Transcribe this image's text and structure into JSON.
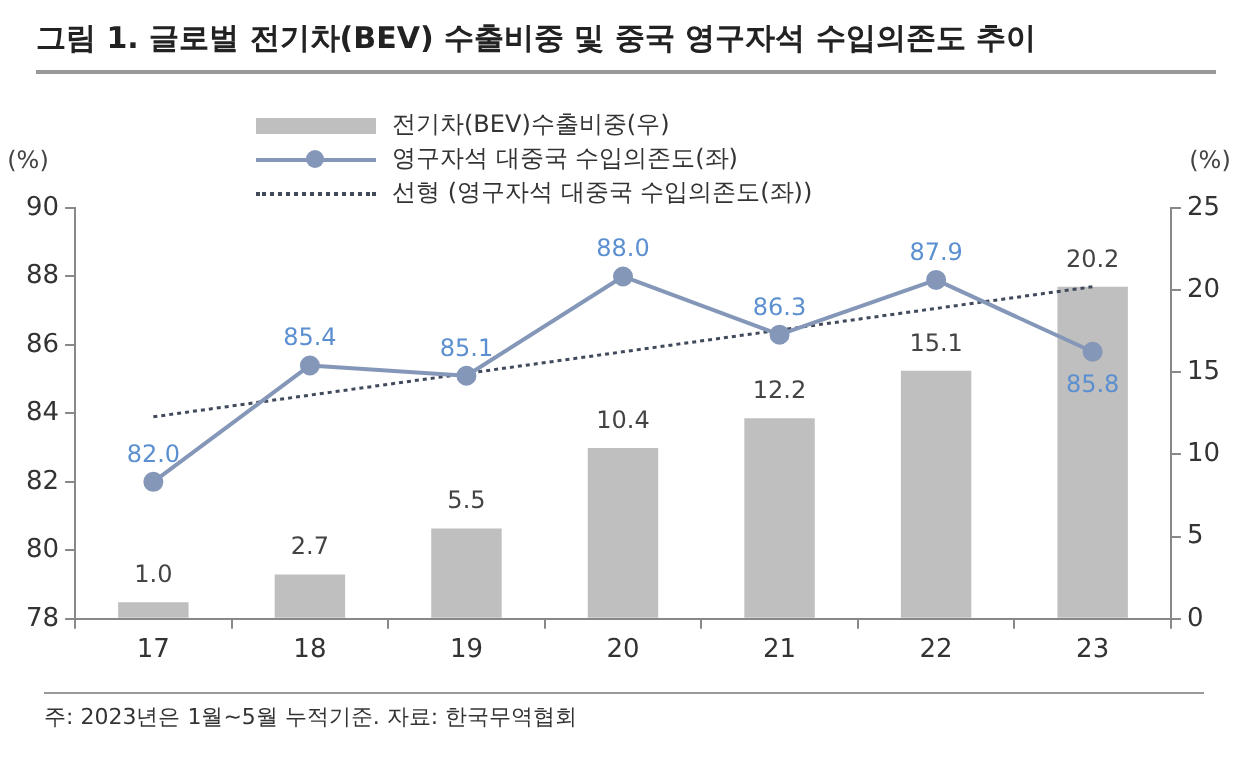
{
  "chart_data": {
    "type": "bar",
    "title": "그림 1. 글로벌 전기차(BEV) 수출비중 및 중국 영구자석 수입의존도 추이",
    "categories": [
      "17",
      "18",
      "19",
      "20",
      "21",
      "22",
      "23"
    ],
    "ylabel": "(%)",
    "y2label": "(%)",
    "ylim": [
      78,
      90
    ],
    "yticks": [
      78,
      80,
      82,
      84,
      86,
      88,
      90
    ],
    "y2lim": [
      0,
      25
    ],
    "y2ticks": [
      0,
      5,
      10,
      15,
      20,
      25
    ],
    "grid": false,
    "legend": "top left",
    "series": [
      {
        "name": "전기차(BEV)수출비중(우)",
        "axis": "y2",
        "color": "#bfbfbf",
        "values": [
          1.0,
          2.7,
          5.5,
          10.4,
          12.2,
          15.1,
          20.2
        ],
        "value_labels": [
          "1.0",
          "2.7",
          "5.5",
          "10.4",
          "12.2",
          "15.1",
          "20.2"
        ]
      },
      {
        "name": "영구자석 대중국 수입의존도(좌)",
        "type": "line",
        "axis": "y",
        "color": "#8497b8",
        "marker": "circle",
        "line_style": "solid",
        "values": [
          82.0,
          85.4,
          85.1,
          88.0,
          86.3,
          87.9,
          85.8
        ],
        "value_labels": [
          "82.0",
          "85.4",
          "85.1",
          "88.0",
          "86.3",
          "87.9",
          "85.8"
        ]
      },
      {
        "name": "선형 (영구자석 대중국 수입의존도(좌))",
        "type": "line",
        "axis": "y",
        "color": "#404a5a",
        "marker": "none",
        "line_style": "dotted",
        "values": [
          83.9,
          null,
          null,
          null,
          null,
          null,
          87.7
        ]
      }
    ],
    "annotations": [
      "주: 2023년은 1월~5월 누적기준. 자료: 한국무역협회"
    ]
  }
}
